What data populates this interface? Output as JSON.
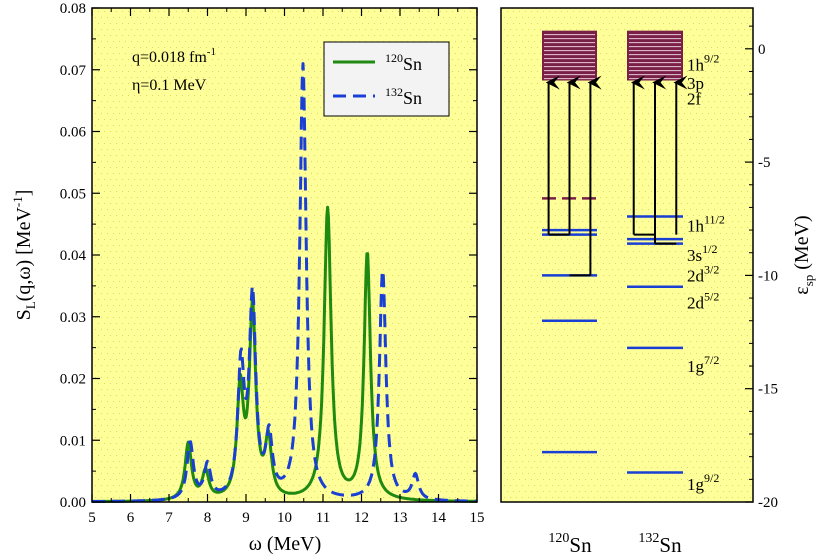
{
  "chart_data": [
    {
      "type": "line",
      "xlabel_sym": "ω",
      "xlabel_unit": " (MeV)",
      "ylabel_main": "S",
      "ylabel_sub": "L",
      "ylabel_args": "(q,ω) [MeV",
      "ylabel_sup": "-1",
      "ylabel_end": "]",
      "xlim": [
        5,
        15
      ],
      "ylim": [
        0,
        0.08
      ],
      "xticks": [
        "5",
        "6",
        "7",
        "8",
        "9",
        "10",
        "11",
        "12",
        "13",
        "14",
        "15"
      ],
      "yticks": [
        "0.00",
        "0.01",
        "0.02",
        "0.03",
        "0.04",
        "0.05",
        "0.06",
        "0.07",
        "0.08"
      ],
      "annotations": {
        "q_text": "q=0.018 fm",
        "q_sup": "-1",
        "eta_text": "η=0.1 MeV"
      },
      "legend_position": "top-right",
      "series": [
        {
          "name_sup": "120",
          "name": "Sn",
          "color": "#1f8a12",
          "style": "solid",
          "peaks": [
            {
              "x": 7.5,
              "y": 0.0092,
              "w": 0.1
            },
            {
              "x": 7.95,
              "y": 0.0045,
              "w": 0.1
            },
            {
              "x": 8.85,
              "y": 0.0175,
              "w": 0.1
            },
            {
              "x": 9.17,
              "y": 0.0305,
              "w": 0.1
            },
            {
              "x": 9.58,
              "y": 0.0092,
              "w": 0.1
            },
            {
              "x": 11.12,
              "y": 0.0472,
              "w": 0.11
            },
            {
              "x": 12.15,
              "y": 0.04,
              "w": 0.1
            }
          ]
        },
        {
          "name_sup": "132",
          "name": "Sn",
          "color": "#1a3fd4",
          "style": "dashed",
          "peaks": [
            {
              "x": 7.55,
              "y": 0.0092,
              "w": 0.1
            },
            {
              "x": 8.0,
              "y": 0.0055,
              "w": 0.1
            },
            {
              "x": 8.87,
              "y": 0.021,
              "w": 0.1
            },
            {
              "x": 9.17,
              "y": 0.032,
              "w": 0.1
            },
            {
              "x": 9.6,
              "y": 0.0095,
              "w": 0.1
            },
            {
              "x": 10.48,
              "y": 0.0705,
              "w": 0.1
            },
            {
              "x": 12.55,
              "y": 0.0375,
              "w": 0.1
            },
            {
              "x": 13.4,
              "y": 0.004,
              "w": 0.1
            }
          ]
        }
      ]
    },
    {
      "type": "level-diagram",
      "ylabel_main": "ε",
      "ylabel_sub": "sp",
      "ylabel_unit": " (MeV)",
      "ylim": [
        -20,
        1.8
      ],
      "yticks": [
        0,
        -5,
        -10,
        -15,
        -20
      ],
      "columns": [
        {
          "sup": "120",
          "label": "Sn"
        },
        {
          "sup": "132",
          "label": "Sn"
        }
      ],
      "continuum": {
        "top": 0.8,
        "bottom": -1.4,
        "color": "#7a2048"
      },
      "levels_120": [
        {
          "e": -6.6,
          "color": "#7a2048",
          "dashed": true
        },
        {
          "e": -8.0,
          "color": "#1a3fd4"
        },
        {
          "e": -8.2,
          "color": "#1a3fd4"
        },
        {
          "e": -10.0,
          "color": "#1a3fd4"
        },
        {
          "e": -12.0,
          "color": "#1a3fd4"
        },
        {
          "e": -17.8,
          "color": "#1a3fd4"
        }
      ],
      "levels_132": [
        {
          "e": -7.4,
          "color": "#1a3fd4"
        },
        {
          "e": -8.4,
          "color": "#1a3fd4"
        },
        {
          "e": -8.6,
          "color": "#1a3fd4"
        },
        {
          "e": -10.5,
          "color": "#1a3fd4"
        },
        {
          "e": -13.2,
          "color": "#1a3fd4"
        },
        {
          "e": -18.7,
          "color": "#1a3fd4"
        }
      ],
      "arrows_120": [
        {
          "from": -8.2,
          "x": 0.12
        },
        {
          "from": -8.2,
          "x": 0.5
        },
        {
          "from": -10.0,
          "x": 0.88
        }
      ],
      "arrows_132": [
        {
          "from": -8.2,
          "x": 0.12
        },
        {
          "from": -8.6,
          "x": 0.5
        },
        {
          "from": -8.2,
          "x": 0.88
        }
      ],
      "level_labels": [
        {
          "e": -0.7,
          "main": "1h",
          "sup": "9/2"
        },
        {
          "e": -1.5,
          "main": "3p",
          "sup": ""
        },
        {
          "e": -2.2,
          "main": "2f",
          "sup": ""
        },
        {
          "e": -7.8,
          "main": "1h",
          "sup": "11/2"
        },
        {
          "e": -9.1,
          "main": "3s",
          "sup": "1/2"
        },
        {
          "e": -10.0,
          "main": "2d",
          "sup": "3/2"
        },
        {
          "e": -11.2,
          "main": "2d",
          "sup": "5/2"
        },
        {
          "e": -14.0,
          "main": "1g",
          "sup": "7/2"
        },
        {
          "e": -19.2,
          "main": "1g",
          "sup": "9/2"
        }
      ]
    }
  ]
}
